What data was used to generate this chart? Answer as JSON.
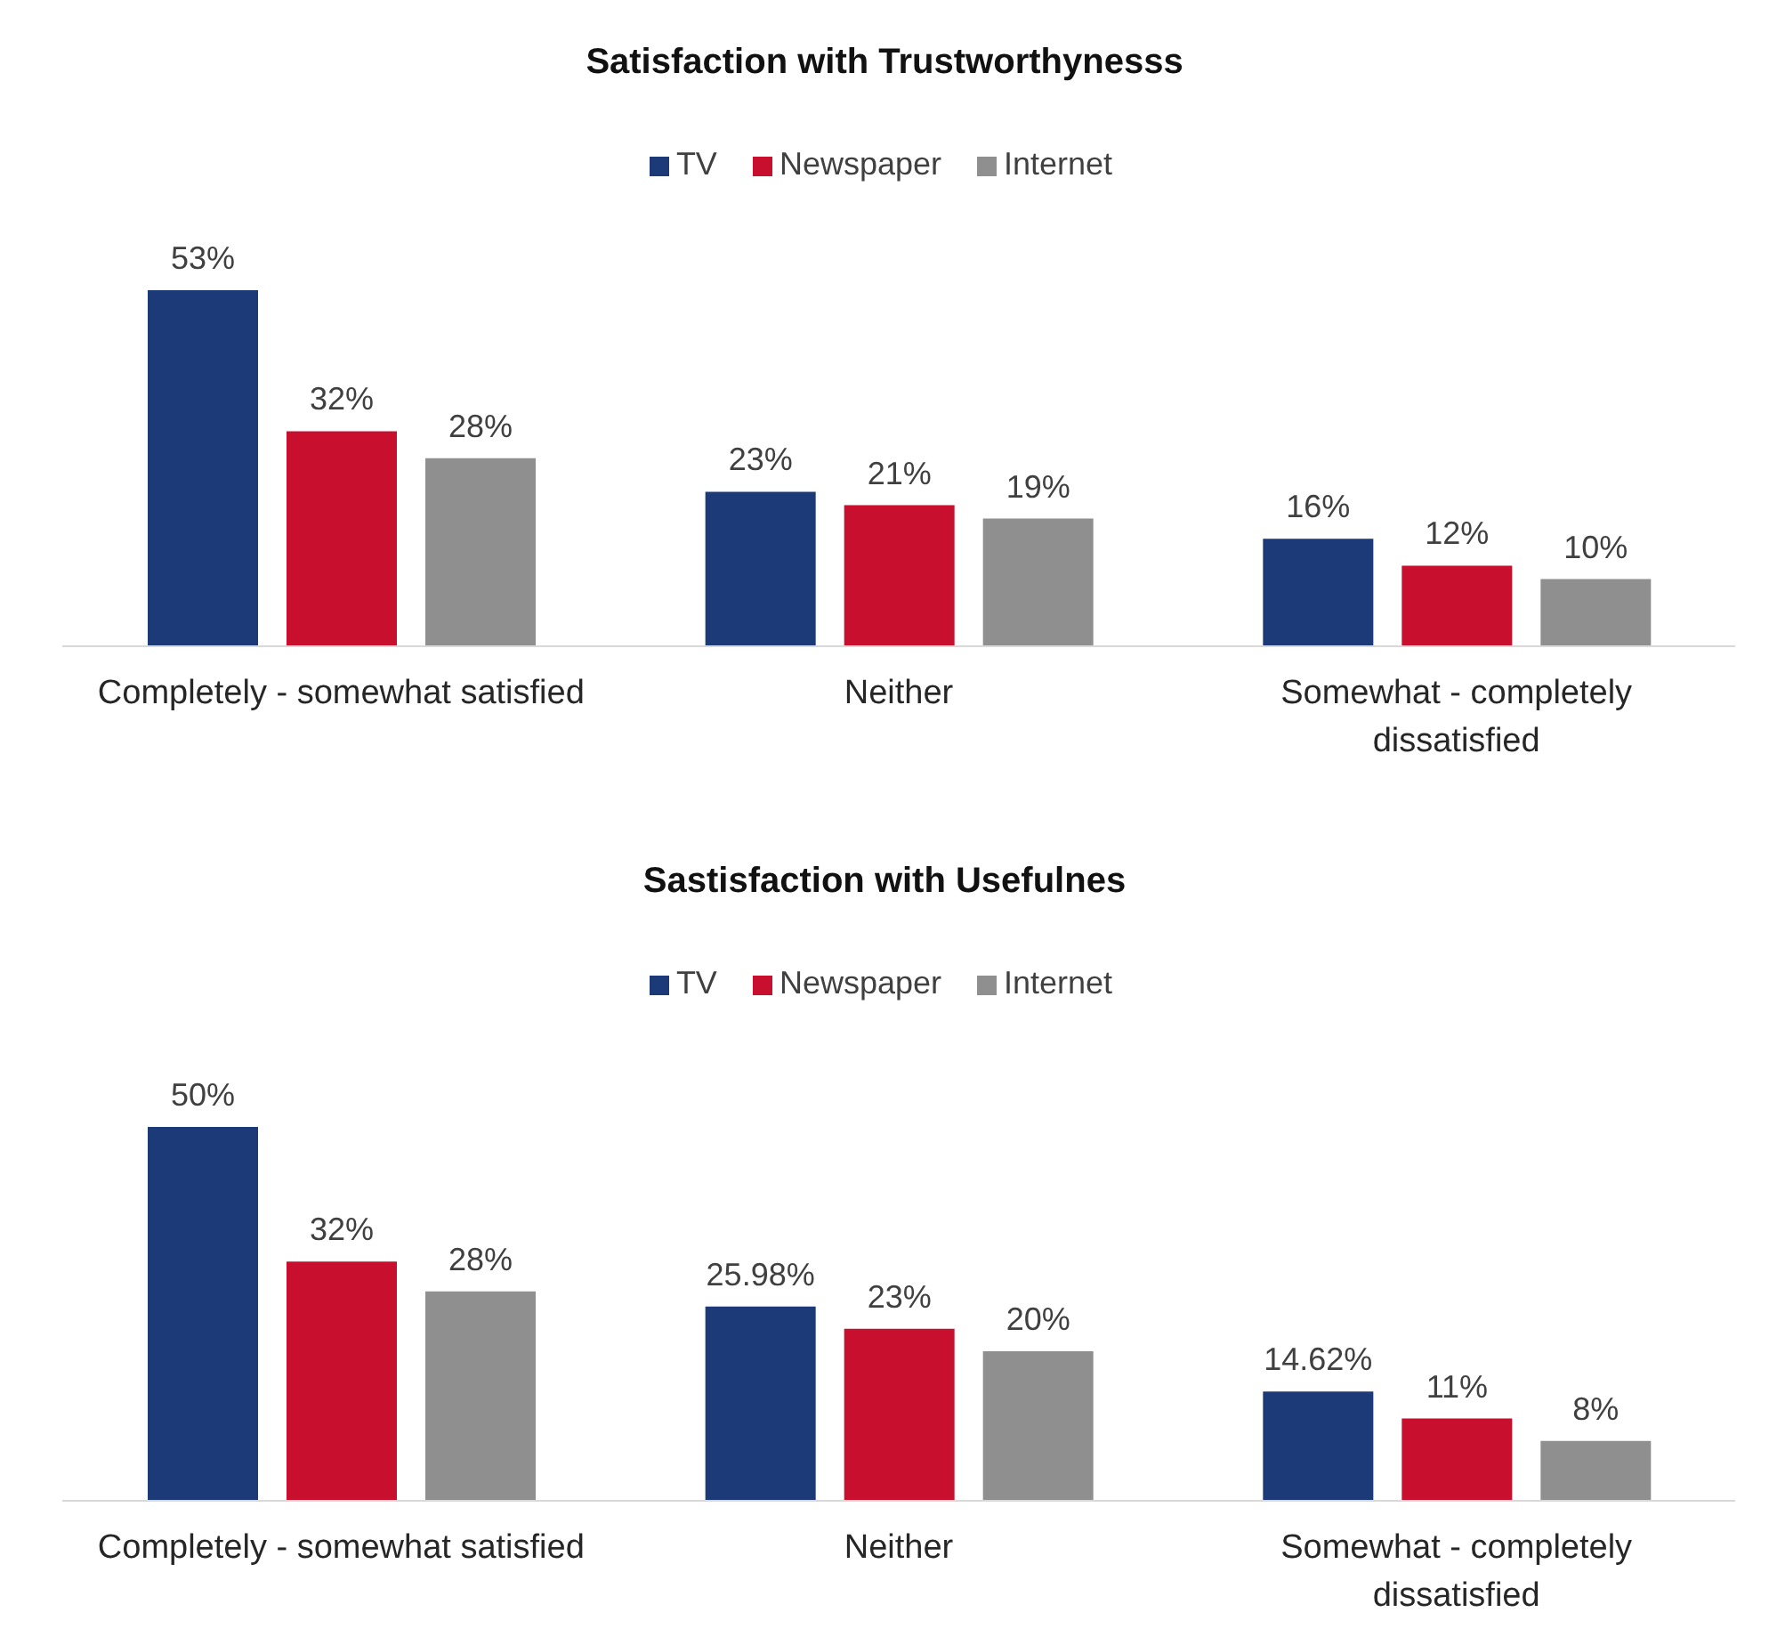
{
  "chart_data": [
    {
      "type": "bar",
      "title": "Satisfaction with Trustworthynesss",
      "categories": [
        "Completely - somewhat satisfied",
        "Neither",
        "Somewhat - completely dissatisfied"
      ],
      "series": [
        {
          "name": "TV",
          "color": "#1c3a78",
          "values": [
            53,
            23,
            16
          ],
          "value_labels": [
            "53%",
            "23%",
            "16%"
          ]
        },
        {
          "name": "Newspaper",
          "color": "#c8102e",
          "values": [
            32,
            21,
            12
          ],
          "value_labels": [
            "32%",
            "21%",
            "12%"
          ]
        },
        {
          "name": "Internet",
          "color": "#8f8f8f",
          "values": [
            28,
            19,
            10
          ],
          "value_labels": [
            "28%",
            "19%",
            "10%"
          ]
        }
      ],
      "legend": "top",
      "tick_labels": "x"
    },
    {
      "type": "bar",
      "title": "Sastisfaction with Usefulnes",
      "categories": [
        "Completely - somewhat satisfied",
        "Neither",
        "Somewhat - completely dissatisfied"
      ],
      "series": [
        {
          "name": "TV",
          "color": "#1c3a78",
          "values": [
            50,
            25.98,
            14.62
          ],
          "value_labels": [
            "50%",
            "25.98%",
            "14.62%"
          ]
        },
        {
          "name": "Newspaper",
          "color": "#c8102e",
          "values": [
            32,
            23,
            11
          ],
          "value_labels": [
            "32%",
            "23%",
            "11%"
          ]
        },
        {
          "name": "Internet",
          "color": "#8f8f8f",
          "values": [
            28,
            20,
            8
          ],
          "value_labels": [
            "28%",
            "20%",
            "8%"
          ]
        }
      ],
      "legend": "top",
      "tick_labels": "x"
    }
  ]
}
